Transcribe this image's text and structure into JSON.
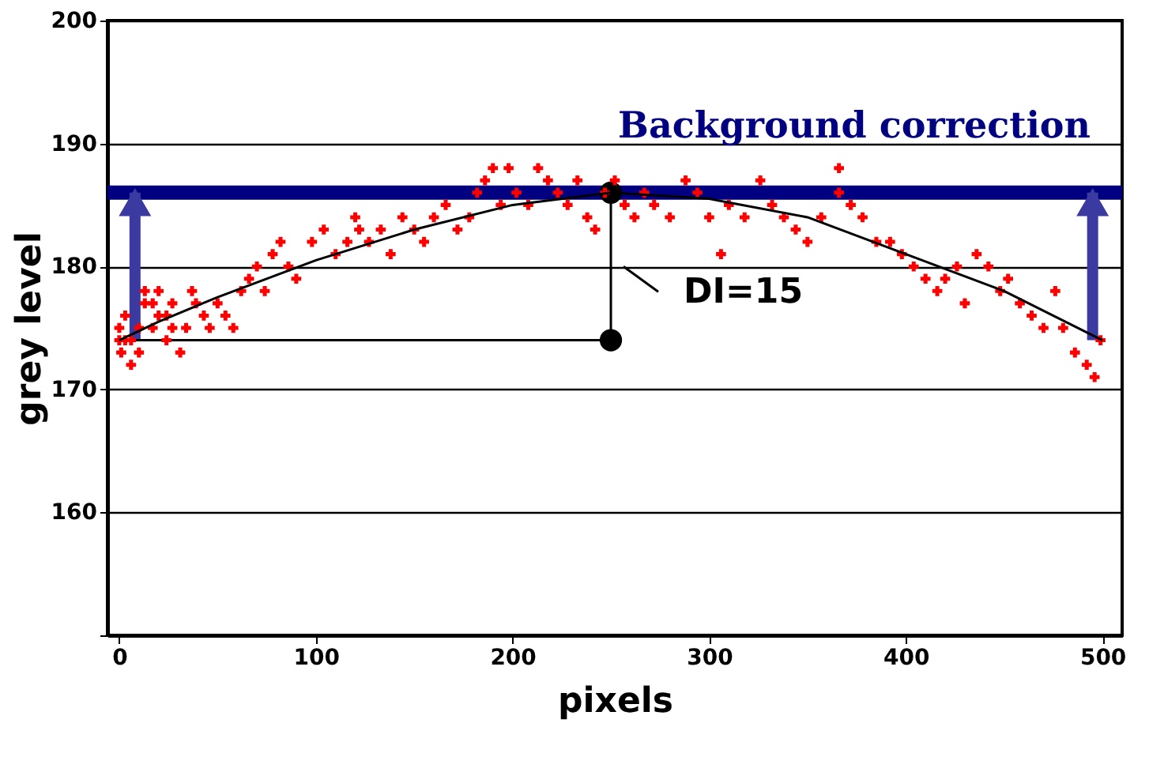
{
  "chart_data": {
    "type": "scatter",
    "xlabel": "pixels",
    "ylabel": "grey level",
    "xlim": [
      -6,
      510
    ],
    "xticks": [
      0,
      100,
      200,
      300,
      400,
      500
    ],
    "ylim": [
      150,
      200
    ],
    "yticks": [
      {
        "value": 150,
        "label": null
      },
      160,
      170,
      180,
      190,
      200
    ],
    "grid": "y",
    "marker": "cross",
    "series": [
      {
        "color": "#ff0000",
        "x": [
          0,
          0,
          1,
          3,
          3,
          6,
          6,
          10,
          10,
          13,
          13,
          17,
          17,
          20,
          20,
          24,
          24,
          27,
          27,
          31,
          34,
          37,
          39,
          43,
          46,
          50,
          54,
          58,
          62,
          66,
          70,
          74,
          78,
          82,
          86,
          90,
          98,
          104,
          110,
          116,
          120,
          122,
          127,
          133,
          138,
          144,
          150,
          155,
          160,
          166,
          172,
          178,
          182,
          186,
          190,
          194,
          198,
          202,
          208,
          213,
          218,
          223,
          228,
          233,
          238,
          242,
          247,
          252,
          257,
          262,
          267,
          272,
          280,
          288,
          294,
          300,
          306,
          310,
          318,
          326,
          332,
          338,
          344,
          350,
          357,
          366,
          366,
          372,
          378,
          385,
          392,
          398,
          404,
          410,
          416,
          420,
          426,
          430,
          436,
          442,
          448,
          452,
          458,
          464,
          470,
          476,
          480,
          486,
          492,
          496,
          499
        ],
        "values": [
          174,
          175,
          173,
          176,
          174,
          172,
          174,
          175,
          173,
          177,
          178,
          177,
          175,
          178,
          176,
          174,
          176,
          177,
          175,
          173,
          175,
          178,
          177,
          176,
          175,
          177,
          176,
          175,
          178,
          179,
          180,
          178,
          181,
          182,
          180,
          179,
          182,
          183,
          181,
          182,
          184,
          183,
          182,
          183,
          181,
          184,
          183,
          182,
          184,
          185,
          183,
          184,
          186,
          187,
          188,
          185,
          188,
          186,
          185,
          188,
          187,
          186,
          185,
          187,
          184,
          183,
          186,
          187,
          185,
          184,
          186,
          185,
          184,
          187,
          186,
          184,
          181,
          185,
          184,
          187,
          185,
          184,
          183,
          182,
          184,
          188,
          186,
          185,
          184,
          182,
          182,
          181,
          180,
          179,
          178,
          179,
          180,
          177,
          181,
          180,
          178,
          179,
          177,
          176,
          175,
          178,
          175,
          173,
          172,
          171,
          174
        ]
      },
      {
        "type": "line",
        "marker": "none",
        "color": "#000000",
        "x": [
          0,
          20,
          50,
          100,
          150,
          200,
          250,
          300,
          350,
          400,
          450,
          500
        ],
        "values": [
          174,
          175.5,
          177.5,
          180.5,
          183,
          185,
          186,
          185.5,
          184,
          181,
          178,
          174
        ]
      }
    ],
    "ref_lines": [
      {
        "axis": "y",
        "value": 186,
        "label": "Background correction",
        "color": "#000080"
      }
    ],
    "annotations": [
      "DI=15"
    ]
  }
}
